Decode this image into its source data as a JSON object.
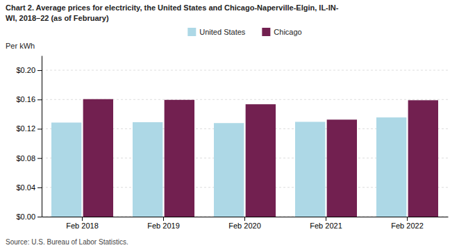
{
  "chart_data": {
    "type": "bar",
    "title": [
      "Chart 2. Average prices for electricity, the United States and Chicago-Naperville-Elgin, IL-IN-",
      "WI, 2018–22 (as of February)"
    ],
    "ylabel": "Per kWh",
    "annotations": [
      "Source: U.S. Bureau of Labor Statistics."
    ],
    "categories": [
      "Feb 2018",
      "Feb 2019",
      "Feb 2020",
      "Feb 2021",
      "Feb 2022"
    ],
    "series": [
      {
        "name": "United States",
        "color": "#ADD8E6",
        "values": [
          0.1285,
          0.129,
          0.1278,
          0.1295,
          0.1355
        ]
      },
      {
        "name": "Chicago",
        "color": "#722050",
        "values": [
          0.1605,
          0.1595,
          0.1535,
          0.1325,
          0.159
        ]
      }
    ],
    "ylim": [
      0.0,
      0.22
    ],
    "yticks": [
      {
        "value": 0.0,
        "label": "$0.00"
      },
      {
        "value": 0.04,
        "label": "$0.04"
      },
      {
        "value": 0.08,
        "label": "$0.08"
      },
      {
        "value": 0.12,
        "label": "$0.12"
      },
      {
        "value": 0.16,
        "label": "$0.16"
      },
      {
        "value": 0.2,
        "label": "$0.20"
      }
    ],
    "grid": true,
    "legend": "top"
  }
}
